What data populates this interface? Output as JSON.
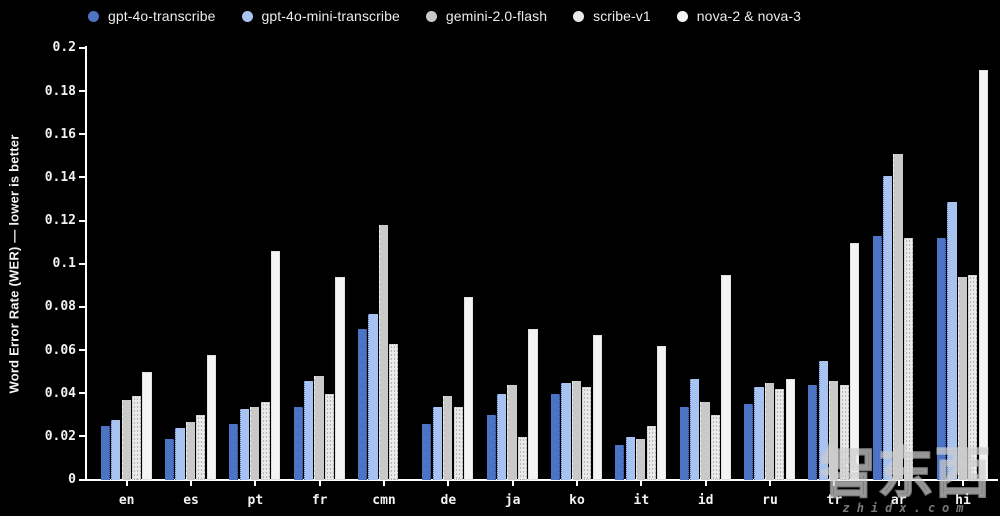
{
  "y_axis": {
    "label": "Word Error Rate (WER) — lower is better",
    "ticks": [
      "0",
      "0.02",
      "0.04",
      "0.06",
      "0.08",
      "0.1",
      "0.12",
      "0.14",
      "0.16",
      "0.18",
      "0.2"
    ]
  },
  "chart_data": {
    "type": "bar",
    "title": "",
    "xlabel": "",
    "ylabel": "Word Error Rate (WER) — lower is better",
    "ylim": [
      0,
      0.2
    ],
    "grid": false,
    "background": "#000000",
    "legend_position": "top-left",
    "categories": [
      "en",
      "es",
      "pt",
      "fr",
      "cmn",
      "de",
      "ja",
      "ko",
      "it",
      "id",
      "ru",
      "tr",
      "ar",
      "hi"
    ],
    "series": [
      {
        "name": "gpt-4o-transcribe",
        "color": "#4d73c4",
        "values": [
          0.025,
          0.019,
          0.026,
          0.034,
          0.07,
          0.026,
          0.03,
          0.04,
          0.016,
          0.034,
          0.035,
          0.044,
          0.113,
          0.112
        ]
      },
      {
        "name": "gpt-4o-mini-transcribe",
        "color": "#a9c3f0",
        "values": [
          0.028,
          0.024,
          0.033,
          0.046,
          0.077,
          0.034,
          0.04,
          0.045,
          0.02,
          0.047,
          0.043,
          0.055,
          0.141,
          0.129
        ]
      },
      {
        "name": "gemini-2.0-flash",
        "color": "#c9c9c9",
        "values": [
          0.037,
          0.027,
          0.034,
          0.048,
          0.118,
          0.039,
          0.044,
          0.046,
          0.019,
          0.036,
          0.045,
          0.046,
          0.151,
          0.094
        ]
      },
      {
        "name": "scribe-v1",
        "color": "#eaeae8",
        "values": [
          0.039,
          0.03,
          0.036,
          0.04,
          0.063,
          0.034,
          0.02,
          0.043,
          0.025,
          0.03,
          0.042,
          0.044,
          0.112,
          0.095
        ]
      },
      {
        "name": "nova-2 & nova-3",
        "color": "#f4f4f2",
        "values": [
          0.05,
          0.058,
          0.106,
          0.094,
          null,
          0.085,
          0.07,
          0.067,
          0.062,
          0.095,
          0.047,
          0.11,
          null,
          0.19
        ]
      }
    ]
  },
  "watermark": {
    "logo": "智东西",
    "url": "zhidx.com"
  }
}
